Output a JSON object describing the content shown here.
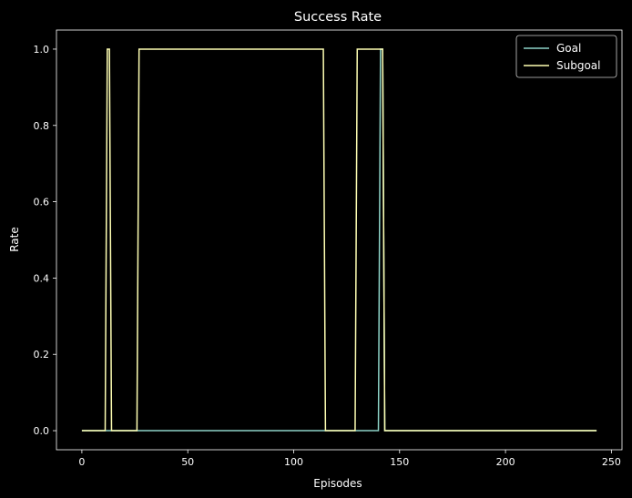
{
  "chart_data": {
    "type": "line",
    "title": "Success Rate",
    "xlabel": "Episodes",
    "ylabel": "Rate",
    "xlim": [
      -12,
      255
    ],
    "ylim": [
      -0.05,
      1.05
    ],
    "xticks": [
      0,
      50,
      100,
      150,
      200,
      250
    ],
    "yticks": [
      0.0,
      0.2,
      0.4,
      0.6,
      0.8,
      1.0
    ],
    "xtick_labels": [
      "0",
      "50",
      "100",
      "150",
      "200",
      "250"
    ],
    "ytick_labels": [
      "0.0",
      "0.2",
      "0.4",
      "0.6",
      "0.8",
      "1.0"
    ],
    "grid": false,
    "legend_position": "top-right",
    "series": [
      {
        "name": "Goal",
        "color": "#8dd3c7",
        "points": [
          [
            0,
            0
          ],
          [
            140,
            0
          ],
          [
            141,
            1
          ],
          [
            142,
            1
          ],
          [
            143,
            0
          ],
          [
            243,
            0
          ]
        ]
      },
      {
        "name": "Subgoal",
        "color": "#ffffb3",
        "points": [
          [
            0,
            0
          ],
          [
            11,
            0
          ],
          [
            12,
            1
          ],
          [
            13,
            1
          ],
          [
            14,
            0
          ],
          [
            26,
            0
          ],
          [
            27,
            1
          ],
          [
            114,
            1
          ],
          [
            115,
            0
          ],
          [
            129,
            0
          ],
          [
            130,
            1
          ],
          [
            142,
            1
          ],
          [
            143,
            0
          ],
          [
            243,
            0
          ]
        ]
      }
    ]
  }
}
